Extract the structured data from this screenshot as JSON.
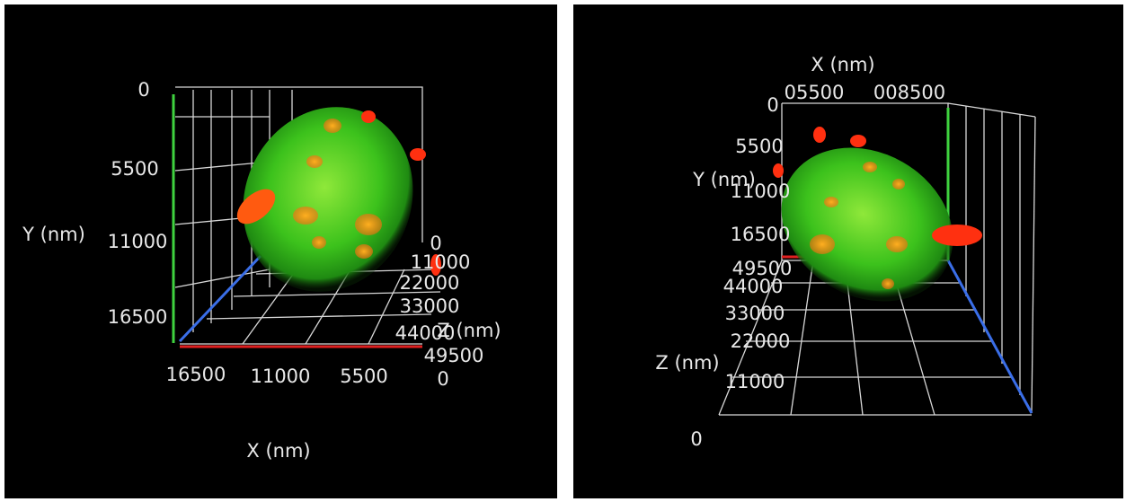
{
  "panels": [
    {
      "labels": [
        "0",
        "5500",
        "Y (nm)",
        "11000",
        "16500",
        "16500",
        "11000",
        "5500",
        "X (nm)",
        "0",
        "11000",
        "22000",
        "33000",
        "44000",
        "Z (nm)",
        "49500",
        "0"
      ]
    },
    {
      "labels": [
        "X (nm)",
        "05500",
        "008500",
        "0",
        "5500",
        "Y (nm)",
        "11000",
        "16500",
        "49500",
        "44000",
        "33000",
        "22000",
        "Z (nm)",
        "11000",
        "0"
      ]
    }
  ]
}
